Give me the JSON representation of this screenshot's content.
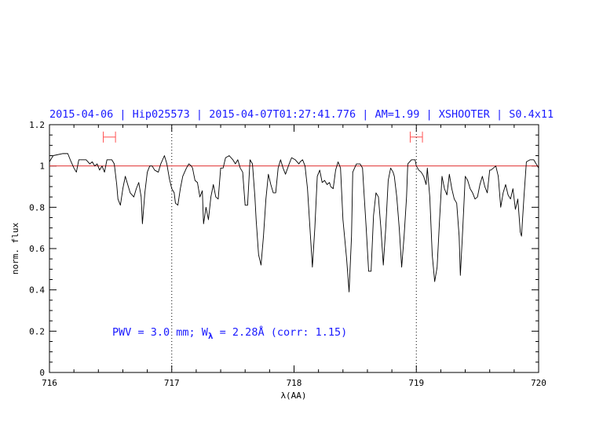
{
  "chart_data": {
    "type": "line",
    "title": "2015-04-06 | Hip025573 | 2015-04-07T01:27:41.776 | AM=1.99 | XSHOOTER | S0.4x11",
    "xlabel": "λ(AA)",
    "ylabel": "norm. flux",
    "annotation": {
      "text": "PWV = 3.0 mm; W",
      "subscript": "λ",
      "tail": " = 2.28Å (corr: 1.15)"
    },
    "color": "#000000",
    "xlim": [
      716,
      720
    ],
    "ylim": [
      0,
      1.2
    ],
    "xticks": [
      716,
      717,
      718,
      719,
      720
    ],
    "yticks": [
      0,
      0.2,
      0.4,
      0.6,
      0.8,
      1,
      1.2
    ],
    "xminor_ticks": [
      716.2,
      716.4,
      716.6,
      716.8,
      717.2,
      717.4,
      717.6,
      717.8,
      718.2,
      718.4,
      718.6,
      718.8,
      719.2,
      719.4,
      719.6,
      719.8
    ],
    "yminor_ticks": [
      0.05,
      0.1,
      0.15,
      0.25,
      0.3,
      0.35,
      0.45,
      0.5,
      0.55,
      0.65,
      0.7,
      0.75,
      0.85,
      0.9,
      0.95,
      1.05,
      1.1,
      1.15
    ],
    "hline": {
      "value": 1,
      "color": "#e03030"
    },
    "vlines": [
      717,
      719
    ],
    "intervals": {
      "color": "#ff5050",
      "items": [
        {
          "x": [
            716.44,
            716.54
          ],
          "y": 1.14
        },
        {
          "x": [
            718.95,
            719.05
          ],
          "y": 1.14
        }
      ]
    },
    "x": [
      716.0,
      716.03,
      716.11,
      716.15,
      716.17,
      716.2,
      716.22,
      716.24,
      716.27,
      716.3,
      716.33,
      716.35,
      716.37,
      716.39,
      716.41,
      716.43,
      716.45,
      716.47,
      716.51,
      716.53,
      716.55,
      716.56,
      716.58,
      716.6,
      716.62,
      716.64,
      716.66,
      716.69,
      716.71,
      716.73,
      716.75,
      716.76,
      716.78,
      716.8,
      716.82,
      716.84,
      716.86,
      716.89,
      716.91,
      716.94,
      716.96,
      716.98,
      717.0,
      717.02,
      717.03,
      717.05,
      717.07,
      717.09,
      717.12,
      717.14,
      717.16,
      717.17,
      717.19,
      717.21,
      717.23,
      717.25,
      717.26,
      717.28,
      717.3,
      717.32,
      717.34,
      717.36,
      717.38,
      717.4,
      717.42,
      717.44,
      717.47,
      717.5,
      717.52,
      717.54,
      717.56,
      717.58,
      717.6,
      717.62,
      717.64,
      717.66,
      717.68,
      717.69,
      717.71,
      717.73,
      717.75,
      717.77,
      717.79,
      717.81,
      717.83,
      717.85,
      717.87,
      717.89,
      717.91,
      717.93,
      717.96,
      717.98,
      718.01,
      718.04,
      718.05,
      718.07,
      718.09,
      718.11,
      718.13,
      718.15,
      718.17,
      718.19,
      718.21,
      718.23,
      718.25,
      718.27,
      718.29,
      718.3,
      718.32,
      718.34,
      718.36,
      718.38,
      718.4,
      718.43,
      718.45,
      718.47,
      718.48,
      718.51,
      718.54,
      718.56,
      718.57,
      718.59,
      718.61,
      718.63,
      718.65,
      718.67,
      718.69,
      718.71,
      718.73,
      718.75,
      718.77,
      718.79,
      718.81,
      718.82,
      718.84,
      718.86,
      718.88,
      718.9,
      718.92,
      718.93,
      718.96,
      718.99,
      719.0,
      719.02,
      719.04,
      719.06,
      719.08,
      719.09,
      719.11,
      719.13,
      719.15,
      719.17,
      719.19,
      719.21,
      719.23,
      719.25,
      719.27,
      719.29,
      719.31,
      719.33,
      719.35,
      719.36,
      719.38,
      719.4,
      719.42,
      719.44,
      719.46,
      719.48,
      719.5,
      719.52,
      719.54,
      719.56,
      719.58,
      719.6,
      719.61,
      719.63,
      719.65,
      719.67,
      719.69,
      719.71,
      719.73,
      719.75,
      719.77,
      719.79,
      719.81,
      719.83,
      719.85,
      719.86,
      719.88,
      719.9,
      719.93,
      719.96,
      720.0
    ],
    "values": [
      1.02,
      1.05,
      1.06,
      1.06,
      1.03,
      0.99,
      0.97,
      1.03,
      1.03,
      1.03,
      1.01,
      1.02,
      1.0,
      1.01,
      0.98,
      1.0,
      0.97,
      1.03,
      1.03,
      1.01,
      0.91,
      0.84,
      0.81,
      0.89,
      0.95,
      0.91,
      0.87,
      0.85,
      0.89,
      0.92,
      0.85,
      0.72,
      0.87,
      0.97,
      1.0,
      1.0,
      0.98,
      0.97,
      1.01,
      1.05,
      1.01,
      0.94,
      0.89,
      0.87,
      0.82,
      0.81,
      0.89,
      0.95,
      0.99,
      1.01,
      1.0,
      0.99,
      0.93,
      0.92,
      0.85,
      0.88,
      0.72,
      0.8,
      0.74,
      0.85,
      0.91,
      0.85,
      0.84,
      0.99,
      0.99,
      1.04,
      1.05,
      1.03,
      1.01,
      1.03,
      0.99,
      0.97,
      0.81,
      0.81,
      1.03,
      1.01,
      0.85,
      0.74,
      0.57,
      0.52,
      0.66,
      0.84,
      0.96,
      0.91,
      0.87,
      0.87,
      0.99,
      1.03,
      0.99,
      0.96,
      1.01,
      1.04,
      1.03,
      1.01,
      1.02,
      1.03,
      1.0,
      0.89,
      0.7,
      0.51,
      0.7,
      0.95,
      0.98,
      0.92,
      0.93,
      0.91,
      0.92,
      0.9,
      0.89,
      0.98,
      1.02,
      0.99,
      0.74,
      0.55,
      0.39,
      0.66,
      0.97,
      1.01,
      1.01,
      0.99,
      0.89,
      0.7,
      0.49,
      0.49,
      0.76,
      0.87,
      0.85,
      0.7,
      0.52,
      0.7,
      0.93,
      0.99,
      0.97,
      0.95,
      0.85,
      0.7,
      0.51,
      0.66,
      0.85,
      1.01,
      1.03,
      1.03,
      1.0,
      0.98,
      0.97,
      0.95,
      0.91,
      0.99,
      0.85,
      0.57,
      0.44,
      0.51,
      0.74,
      0.95,
      0.89,
      0.86,
      0.96,
      0.89,
      0.84,
      0.82,
      0.66,
      0.47,
      0.7,
      0.95,
      0.93,
      0.89,
      0.87,
      0.84,
      0.85,
      0.91,
      0.95,
      0.9,
      0.87,
      0.98,
      0.98,
      0.99,
      1.0,
      0.95,
      0.8,
      0.87,
      0.91,
      0.86,
      0.84,
      0.89,
      0.79,
      0.84,
      0.68,
      0.66,
      0.85,
      1.02,
      1.03,
      1.03,
      0.99
    ]
  }
}
